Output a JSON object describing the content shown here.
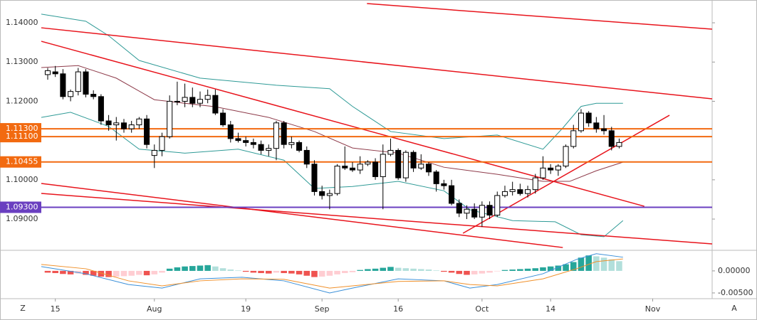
{
  "chart_data": {
    "type": "candlestick",
    "xlim": [
      -0.84,
      87.2
    ],
    "ylim": [
      1.0824,
      1.1449
    ],
    "y2lim": [
      -0.0063,
      0.0045
    ],
    "xticks": [
      {
        "value": 1,
        "label": "15"
      },
      {
        "value": 14,
        "label": "Aug"
      },
      {
        "value": 26,
        "label": "19"
      },
      {
        "value": 36,
        "label": "Sep"
      },
      {
        "value": 46,
        "label": "16"
      },
      {
        "value": 57,
        "label": "Oct"
      },
      {
        "value": 66,
        "label": "14"
      },
      {
        "value": 79.4,
        "label": "Nov"
      }
    ],
    "yticks": [
      {
        "value": 1.14,
        "label": "1.14000"
      },
      {
        "value": 1.13,
        "label": "1.13000"
      },
      {
        "value": 1.12,
        "label": "1.12000"
      },
      {
        "value": 1.1,
        "label": "1.10000"
      },
      {
        "value": 1.09,
        "label": "1.09000"
      }
    ],
    "y2ticks": [
      {
        "value": 0,
        "label": "0.00000"
      },
      {
        "value": -0.005,
        "label": "-0.00500"
      }
    ],
    "corner_labels": [
      "Z",
      "A"
    ],
    "open": [
      1.1268,
      1.1275,
      1.127,
      1.1212,
      1.1225,
      1.1275,
      1.1218,
      1.1212,
      1.115,
      1.114,
      1.1145,
      1.113,
      1.114,
      1.1155,
      1.1062,
      1.1075,
      1.111,
      1.12,
      1.12,
      1.121,
      1.1195,
      1.1205,
      1.1215,
      1.117,
      1.114,
      1.1105,
      1.11,
      1.1095,
      1.109,
      1.1075,
      1.108,
      1.1145,
      1.109,
      1.1095,
      1.1075,
      1.104,
      1.097,
      1.096,
      1.0965,
      1.1035,
      1.103,
      1.1025,
      1.104,
      1.1045,
      1.1008,
      1.1065,
      1.1075,
      1.1005,
      1.107,
      1.103,
      1.104,
      1.102,
      1.099,
      1.0985,
      1.094,
      1.0915,
      1.0925,
      1.0905,
      1.0935,
      1.091,
      1.096,
      1.097,
      1.0975,
      1.0965,
      1.0975,
      1.1005,
      1.103,
      1.1025,
      1.1035,
      1.1085,
      1.1125,
      1.117,
      1.1145,
      1.113,
      1.1125,
      1.1085
    ],
    "high": [
      1.1285,
      1.129,
      1.1282,
      1.123,
      1.1285,
      1.1282,
      1.1228,
      1.1218,
      1.1165,
      1.116,
      1.1155,
      1.115,
      1.116,
      1.1165,
      1.109,
      1.112,
      1.1215,
      1.125,
      1.1245,
      1.1235,
      1.1225,
      1.123,
      1.123,
      1.118,
      1.115,
      1.112,
      1.111,
      1.1105,
      1.11,
      1.109,
      1.115,
      1.115,
      1.111,
      1.11,
      1.1085,
      1.105,
      1.0985,
      1.0975,
      1.104,
      1.1085,
      1.1045,
      1.106,
      1.105,
      1.1055,
      1.109,
      1.1105,
      1.108,
      1.1075,
      1.1075,
      1.1065,
      1.1045,
      1.1025,
      1.1,
      1.1,
      1.095,
      1.0935,
      1.094,
      1.0945,
      1.0945,
      1.097,
      1.0985,
      1.0995,
      1.099,
      1.0985,
      1.1015,
      1.106,
      1.104,
      1.104,
      1.109,
      1.114,
      1.118,
      1.1175,
      1.116,
      1.1165,
      1.1135,
      1.1105
    ],
    "low": [
      1.1255,
      1.1262,
      1.1205,
      1.12,
      1.1215,
      1.121,
      1.1205,
      1.114,
      1.1125,
      1.11,
      1.112,
      1.112,
      1.113,
      1.108,
      1.103,
      1.106,
      1.1105,
      1.119,
      1.1185,
      1.1185,
      1.1185,
      1.1195,
      1.1165,
      1.1135,
      1.1095,
      1.1095,
      1.1085,
      1.108,
      1.1065,
      1.106,
      1.105,
      1.108,
      1.108,
      1.107,
      1.103,
      1.096,
      1.095,
      1.0925,
      1.096,
      1.1025,
      1.102,
      1.1015,
      1.1035,
      1.1,
      1.0925,
      1.106,
      1.1,
      1.0995,
      1.102,
      1.1025,
      1.101,
      1.097,
      1.0975,
      1.0935,
      1.0905,
      1.09,
      1.09,
      1.088,
      1.09,
      1.0905,
      1.0955,
      1.096,
      1.096,
      1.0955,
      1.0965,
      1.1,
      1.1015,
      1.101,
      1.103,
      1.108,
      1.112,
      1.1135,
      1.112,
      1.1115,
      1.1075,
      1.108
    ],
    "close": [
      1.1278,
      1.127,
      1.1212,
      1.1225,
      1.1275,
      1.1218,
      1.1212,
      1.115,
      1.114,
      1.1145,
      1.113,
      1.114,
      1.1155,
      1.109,
      1.1075,
      1.111,
      1.12,
      1.12,
      1.121,
      1.1195,
      1.1205,
      1.1215,
      1.117,
      1.114,
      1.1105,
      1.11,
      1.1095,
      1.109,
      1.1075,
      1.108,
      1.1145,
      1.109,
      1.1095,
      1.1075,
      1.104,
      1.097,
      1.096,
      1.0965,
      1.1035,
      1.103,
      1.1025,
      1.104,
      1.1045,
      1.1008,
      1.1065,
      1.1075,
      1.1005,
      1.107,
      1.103,
      1.104,
      1.102,
      1.099,
      1.0985,
      1.094,
      1.0915,
      1.0925,
      1.0905,
      1.0935,
      1.091,
      1.096,
      1.097,
      1.0975,
      1.0965,
      1.0975,
      1.1005,
      1.103,
      1.1025,
      1.1035,
      1.1085,
      1.1125,
      1.117,
      1.1145,
      1.113,
      1.1125,
      1.1085,
      1.1095
    ],
    "bands": [
      {
        "color": "#2e9a96",
        "x": [
          -0.84,
          5,
          8,
          12,
          20,
          30,
          37,
          40,
          45,
          52,
          59,
          65,
          67.6,
          70,
          72,
          75.5
        ],
        "values": [
          1.1422,
          1.1404,
          1.1367,
          1.1304,
          1.1259,
          1.1241,
          1.1232,
          1.1187,
          1.1123,
          1.1105,
          1.1114,
          1.1078,
          1.1132,
          1.1187,
          1.1195,
          1.1195
        ]
      },
      {
        "color": "#8e3b4a",
        "x": [
          -0.84,
          4,
          9,
          14,
          22,
          29,
          35,
          40,
          46,
          52,
          59,
          65,
          68.5,
          72,
          75.5
        ],
        "values": [
          1.1286,
          1.1291,
          1.1259,
          1.1204,
          1.1186,
          1.1159,
          1.1123,
          1.1081,
          1.1068,
          1.1032,
          1.1014,
          1.0996,
          1.0996,
          1.1023,
          1.1045
        ]
      },
      {
        "color": "#2e9a96",
        "x": [
          -0.84,
          3,
          8,
          12,
          18,
          25,
          31,
          35,
          40,
          46,
          52,
          55.4,
          61,
          66.6,
          70,
          73,
          75.5
        ],
        "values": [
          1.1159,
          1.1172,
          1.1136,
          1.1078,
          1.1068,
          1.1078,
          1.105,
          1.0978,
          1.0983,
          1.0996,
          1.0972,
          1.0924,
          1.0896,
          1.0893,
          1.086,
          1.0855,
          1.0896
        ]
      }
    ],
    "trendlines": [
      {
        "color": "#e8141c",
        "x": [
          41.9,
          87.2
        ],
        "y": [
          1.14489,
          1.13837
        ]
      },
      {
        "color": "#e8141c",
        "x": [
          -0.84,
          87.2
        ],
        "y": [
          1.13873,
          1.12062
        ]
      },
      {
        "color": "#e8141c",
        "x": [
          -0.84,
          78.3
        ],
        "y": [
          1.13529,
          1.09326
        ]
      },
      {
        "color": "#e8141c",
        "x": [
          -0.84,
          67.6
        ],
        "y": [
          1.09906,
          1.08275
        ]
      },
      {
        "color": "#e8141c",
        "x": [
          -0.84,
          87.2
        ],
        "y": [
          1.09652,
          1.08366
        ]
      },
      {
        "color": "#e8141c",
        "x": [
          54.5,
          81.6
        ],
        "y": [
          1.08638,
          1.11645
        ]
      }
    ],
    "levels": [
      {
        "value": 1.113,
        "label": "1.11300",
        "color": "#f26a10"
      },
      {
        "value": 1.111,
        "label": "1.11100",
        "color": "#f26a10"
      },
      {
        "value": 1.10455,
        "label": "1.10455",
        "color": "#f26a10"
      },
      {
        "value": 1.093,
        "label": "1.09300",
        "color": "#6a3fc0"
      }
    ],
    "histogram": [
      -0.0004,
      -0.0005,
      -0.0007,
      -0.0008,
      -0.0006,
      -0.0009,
      -0.0011,
      -0.0013,
      -0.0014,
      -0.0013,
      -0.0012,
      -0.0011,
      -0.0009,
      -0.001,
      -0.0008,
      -0.0004,
      0.0005,
      0.0008,
      0.001,
      0.0011,
      0.0012,
      0.0013,
      0.001,
      0.0006,
      0.0003,
      0.0001,
      -0.0002,
      -0.0004,
      -0.0005,
      -0.0006,
      -0.0004,
      -0.0005,
      -0.0006,
      -0.0008,
      -0.0011,
      -0.0014,
      -0.0013,
      -0.0011,
      -0.0008,
      -0.0005,
      -0.0003,
      0.0002,
      0.0004,
      0.0005,
      0.0007,
      0.0009,
      0.0007,
      0.0006,
      0.0005,
      0.0004,
      0.0003,
      0.0001,
      -0.0002,
      -0.0004,
      -0.0007,
      -0.0009,
      -0.0008,
      -0.0006,
      -0.0004,
      -0.0001,
      0.0002,
      0.0003,
      0.0004,
      0.0005,
      0.0006,
      0.0008,
      0.001,
      0.0012,
      0.0015,
      0.002,
      0.003,
      0.0035,
      0.0033,
      0.003,
      0.0026,
      0.0022
    ],
    "macd_lines": [
      {
        "color": "#3a8fd8",
        "x": [
          -0.84,
          5,
          10.6,
          15,
          20,
          25.5,
          31,
          37,
          40,
          46,
          52,
          55.4,
          59,
          65,
          69.4,
          72,
          75.5
        ],
        "values": [
          0.00097,
          -0.00065,
          -0.0031,
          -0.0039,
          -0.0018,
          -0.00145,
          -0.00226,
          -0.005,
          -0.0039,
          -0.0018,
          -0.00226,
          -0.0039,
          -0.0031,
          -0.00065,
          0.0026,
          0.0039,
          0.0031
        ]
      },
      {
        "color": "#f0902a",
        "x": [
          -0.84,
          5,
          10.6,
          15,
          20,
          25.5,
          31,
          37,
          40,
          46,
          52,
          55.4,
          59,
          65,
          69.4,
          72,
          75.5
        ],
        "values": [
          0.00145,
          0.00048,
          -0.00226,
          -0.0034,
          -0.00226,
          -0.0018,
          -0.0019,
          -0.0039,
          -0.0034,
          -0.0024,
          -0.00226,
          -0.0031,
          -0.0034,
          -0.0018,
          0.00048,
          0.0021,
          0.0027
        ]
      }
    ]
  }
}
